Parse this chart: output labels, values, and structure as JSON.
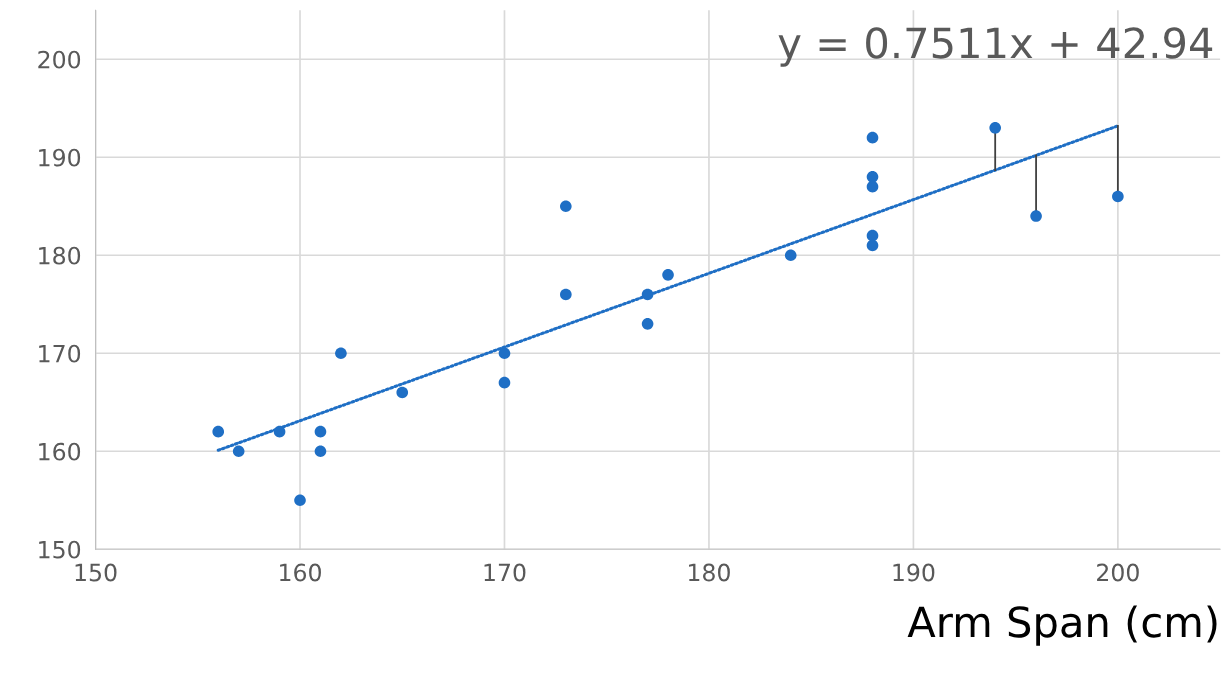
{
  "chart_data": {
    "type": "scatter",
    "xlabel": "Arm Span (cm)",
    "annotations": [
      "y = 0.7511x + 42.94"
    ],
    "series": [
      {
        "color": "#1f6fc5",
        "marker": "circle",
        "x": [
          156,
          157,
          159,
          160,
          161,
          161,
          162,
          165,
          170,
          170,
          173,
          173,
          177,
          177,
          178,
          184,
          188,
          188,
          188,
          188,
          188,
          194,
          196,
          200
        ],
        "values": [
          162,
          160,
          162,
          155,
          162,
          160,
          170,
          166,
          170,
          167,
          185,
          176,
          176,
          173,
          178,
          180,
          192,
          188,
          187,
          182,
          181,
          193,
          184,
          186
        ]
      },
      {
        "type": "line",
        "color": "#1f6fc5",
        "line_style": "dotted",
        "x": [
          156,
          200
        ],
        "values": [
          160.1,
          193.2
        ]
      },
      {
        "type": "line",
        "color": "#404040",
        "line_style": "solid",
        "x": [
          194,
          194
        ],
        "values": [
          193,
          188.7
        ]
      },
      {
        "type": "line",
        "color": "#404040",
        "line_style": "solid",
        "x": [
          196,
          196
        ],
        "values": [
          184,
          190.2
        ]
      },
      {
        "type": "line",
        "color": "#404040",
        "line_style": "solid",
        "x": [
          200,
          200
        ],
        "values": [
          186,
          193.2
        ]
      }
    ],
    "xlim": [
      150,
      205
    ],
    "ylim": [
      150,
      205
    ],
    "xticks": [
      150,
      160,
      170,
      180,
      190,
      200
    ],
    "yticks": [
      150,
      160,
      170,
      180,
      190,
      200
    ],
    "grid": true
  }
}
